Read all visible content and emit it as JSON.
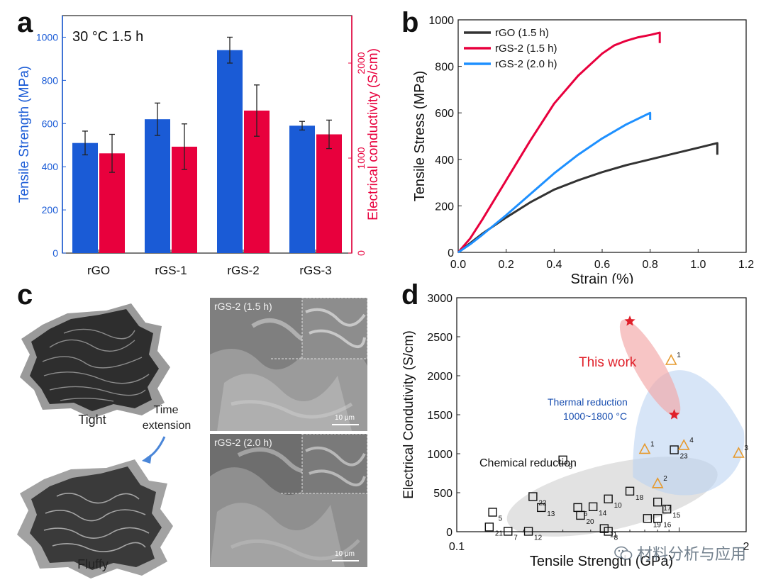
{
  "panels": {
    "a": "a",
    "b": "b",
    "c": "c",
    "d": "d"
  },
  "panel_c": {
    "model_top_label": "Tight",
    "model_bottom_label": "Fluffy",
    "arrow_label_1": "Time",
    "arrow_label_2": "extension",
    "sem_top_label": "rGS-2  (1.5 h)",
    "sem_bottom_label": "rGS-2  (2.0 h)",
    "scale_text": "10 μm"
  },
  "watermark": "材料分析与应用",
  "colors": {
    "blue": "#1a5bd6",
    "red": "#e8003d",
    "gray": "#333333",
    "light_blue": "#1e90ff",
    "orange": "#e69a2e",
    "star": "#e0202a"
  },
  "chart_data": [
    {
      "id": "a",
      "type": "bar",
      "annotation": "30 °C 1.5 h",
      "categories": [
        "rGO",
        "rGS-1",
        "rGS-2",
        "rGS-3"
      ],
      "ylabel": "Tensile Strength (MPa)",
      "y2label": "Electrical conductivity (S/cm)",
      "ylim": [
        0,
        1100
      ],
      "y2lim": [
        0,
        2500
      ],
      "yticks": [
        0,
        200,
        400,
        600,
        800,
        1000
      ],
      "y2ticks": [
        0,
        1000,
        2000
      ],
      "series": [
        {
          "axis": "left",
          "values": [
            510,
            620,
            940,
            590
          ],
          "errors": [
            55,
            75,
            60,
            20
          ]
        },
        {
          "axis": "right",
          "values": [
            1050,
            1120,
            1500,
            1250
          ],
          "errors": [
            200,
            240,
            270,
            150
          ]
        }
      ]
    },
    {
      "id": "b",
      "type": "line",
      "xlabel": "Strain (%)",
      "ylabel": "Tensile Stress (MPa)",
      "xlim": [
        0,
        1.2
      ],
      "ylim": [
        0,
        1000
      ],
      "xticks": [
        0.0,
        0.2,
        0.4,
        0.6,
        0.8,
        1.0,
        1.2
      ],
      "xtick_labels": [
        "0.0",
        "0.2",
        "0.4",
        "0.6",
        "0.8",
        "1.0",
        "1.2"
      ],
      "yticks": [
        0,
        200,
        400,
        600,
        800,
        1000
      ],
      "legend_position": "top-left",
      "series": [
        {
          "name": "rGO    (1.5 h)",
          "x": [
            0,
            0.05,
            0.1,
            0.2,
            0.3,
            0.4,
            0.5,
            0.6,
            0.7,
            0.8,
            0.9,
            1.0,
            1.08,
            1.08
          ],
          "y": [
            0,
            40,
            80,
            150,
            215,
            270,
            310,
            345,
            375,
            400,
            425,
            450,
            470,
            420
          ]
        },
        {
          "name": "rGS-2 (1.5 h)",
          "x": [
            0,
            0.05,
            0.1,
            0.2,
            0.3,
            0.4,
            0.5,
            0.6,
            0.65,
            0.7,
            0.75,
            0.8,
            0.84,
            0.84
          ],
          "y": [
            0,
            60,
            140,
            310,
            480,
            640,
            760,
            855,
            890,
            910,
            925,
            935,
            945,
            900
          ]
        },
        {
          "name": "rGS-2 (2.0 h)",
          "x": [
            0,
            0.05,
            0.1,
            0.2,
            0.3,
            0.4,
            0.5,
            0.6,
            0.7,
            0.76,
            0.8,
            0.8
          ],
          "y": [
            0,
            35,
            75,
            160,
            250,
            340,
            420,
            490,
            550,
            580,
            600,
            570
          ]
        }
      ]
    },
    {
      "id": "d",
      "type": "scatter",
      "xlabel": "Tensile Strength (GPa)",
      "ylabel": "Electrical Condutivity (S/cm)",
      "xscale": "log",
      "xlim": [
        0.1,
        2
      ],
      "ylim": [
        0,
        3000
      ],
      "xtick_labels": [
        "0.1",
        "2"
      ],
      "yticks": [
        0,
        500,
        1000,
        1500,
        2000,
        2500,
        3000
      ],
      "region_labels": [
        "This work",
        "Thermal reduction",
        "1000~1800 °C",
        "Chemical reduction"
      ],
      "this_work": [
        {
          "x": 0.6,
          "y": 2700
        },
        {
          "x": 0.95,
          "y": 1500
        }
      ],
      "thermal": [
        {
          "label": "1",
          "x": 0.92,
          "y": 2200
        },
        {
          "label": "1",
          "x": 0.7,
          "y": 1060
        },
        {
          "label": "4",
          "x": 1.05,
          "y": 1110
        },
        {
          "label": "3",
          "x": 1.85,
          "y": 1010
        },
        {
          "label": "2",
          "x": 0.8,
          "y": 620
        }
      ],
      "chemical": [
        {
          "label": "21",
          "x": 0.14,
          "y": 60
        },
        {
          "label": "5",
          "x": 0.145,
          "y": 250
        },
        {
          "label": "7",
          "x": 0.17,
          "y": 5
        },
        {
          "label": "12",
          "x": 0.21,
          "y": 5
        },
        {
          "label": "22",
          "x": 0.22,
          "y": 450
        },
        {
          "label": "13",
          "x": 0.24,
          "y": 310
        },
        {
          "label": "9",
          "x": 0.3,
          "y": 920
        },
        {
          "label": "6",
          "x": 0.35,
          "y": 310
        },
        {
          "label": "20",
          "x": 0.36,
          "y": 210
        },
        {
          "label": "14",
          "x": 0.41,
          "y": 320
        },
        {
          "label": "10",
          "x": 0.48,
          "y": 420
        },
        {
          "label": "11",
          "x": 0.46,
          "y": 40
        },
        {
          "label": "8",
          "x": 0.48,
          "y": 5
        },
        {
          "label": "18",
          "x": 0.6,
          "y": 520
        },
        {
          "label": "19",
          "x": 0.72,
          "y": 170
        },
        {
          "label": "17",
          "x": 0.8,
          "y": 380
        },
        {
          "label": "16",
          "x": 0.8,
          "y": 170
        },
        {
          "label": "15",
          "x": 0.88,
          "y": 290
        },
        {
          "label": "23",
          "x": 0.95,
          "y": 1050
        }
      ]
    }
  ]
}
